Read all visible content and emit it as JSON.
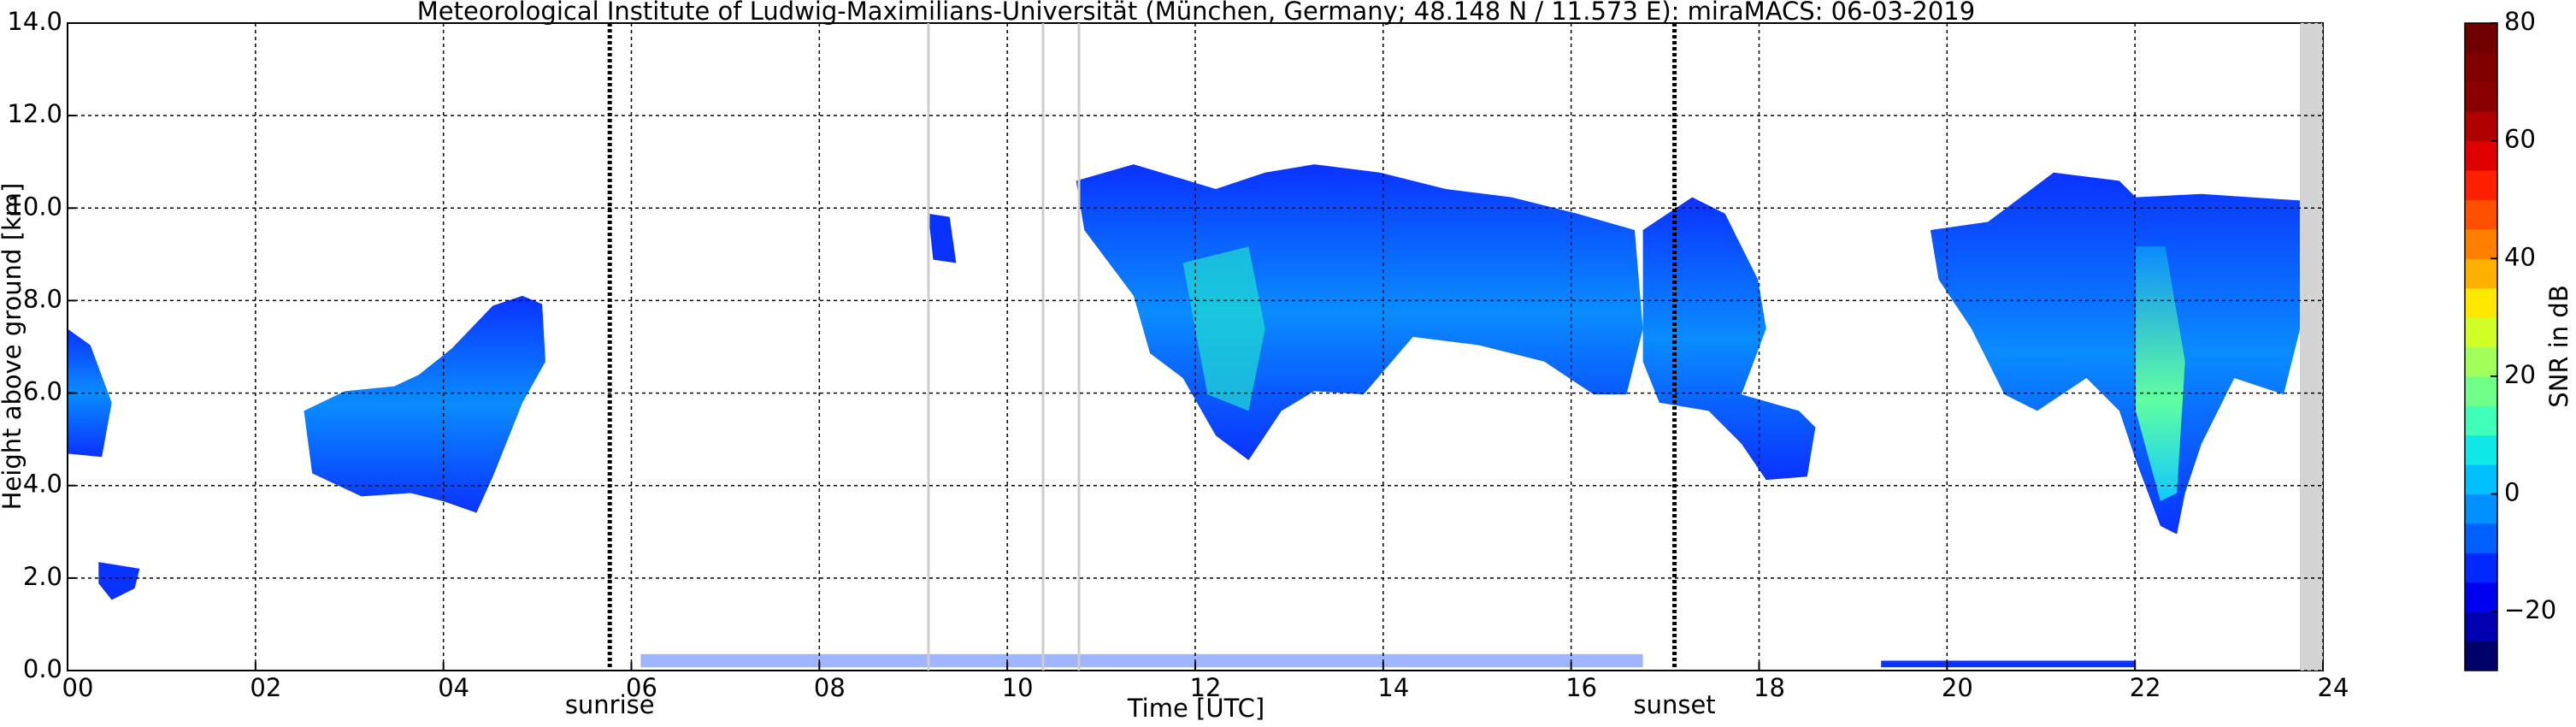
{
  "chart_data": {
    "type": "heatmap",
    "title": "Meteorological Institute of Ludwig-Maximilians-Universität (München, Germany; 48.148 N / 11.573 E):    miraMACS: 06-03-2019",
    "xlabel": "Time [UTC]",
    "ylabel": "Height above ground [km]",
    "xlim": [
      0,
      24
    ],
    "ylim": [
      0,
      14
    ],
    "xticks": [
      {
        "value": 0,
        "label": "00"
      },
      {
        "value": 2,
        "label": "02"
      },
      {
        "value": 4,
        "label": "04"
      },
      {
        "value": 6,
        "label": "06"
      },
      {
        "value": 8,
        "label": "08"
      },
      {
        "value": 10,
        "label": "10"
      },
      12,
      14,
      16,
      18,
      20,
      22,
      24
    ],
    "yticks": [
      {
        "value": 0,
        "label": "0.0"
      },
      {
        "value": 2,
        "label": "2.0"
      },
      {
        "value": 4,
        "label": "4.0"
      },
      {
        "value": 6,
        "label": "6.0"
      },
      {
        "value": 8,
        "label": "8.0"
      },
      {
        "value": 10,
        "label": "10.0"
      },
      {
        "value": 12,
        "label": "12.0"
      },
      {
        "value": 14,
        "label": "14.0"
      }
    ],
    "grid": true,
    "annotations": [
      {
        "text": "sunrise",
        "x": 5.77
      },
      {
        "text": "sunset",
        "x": 17.1
      }
    ],
    "colorbar": {
      "label": "SNR in dB",
      "lim": [
        -30,
        80
      ],
      "ticks": [
        {
          "value": -20,
          "label": "−20"
        },
        0,
        20,
        40,
        60,
        80
      ],
      "colors": [
        "#00006a",
        "#0000b0",
        "#0000f0",
        "#0028ff",
        "#0060ff",
        "#0090ff",
        "#00c0ff",
        "#10e8e8",
        "#40ffb8",
        "#70ff88",
        "#a0ff58",
        "#d0ff28",
        "#ffe800",
        "#ffb000",
        "#ff8000",
        "#ff5000",
        "#ff2000",
        "#e00000",
        "#b00000",
        "#8a0000",
        "#800000",
        "#700000"
      ]
    }
  }
}
